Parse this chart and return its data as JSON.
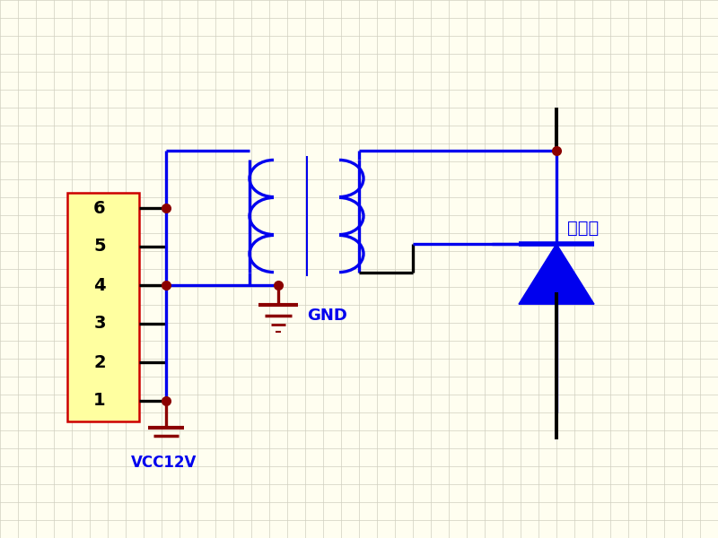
{
  "bg_color": "#fffef0",
  "grid_color": "#d0d0c0",
  "blue": "#0000ee",
  "dark_red": "#8b0000",
  "black": "#000000",
  "figsize": [
    8.0,
    6.0
  ],
  "dpi": 100,
  "connector_labels": [
    "6",
    "5",
    "4",
    "3",
    "2",
    "1"
  ],
  "vcc_label": "VCC12V",
  "gnd_label": "GND",
  "thyristor_label": "可控硒"
}
